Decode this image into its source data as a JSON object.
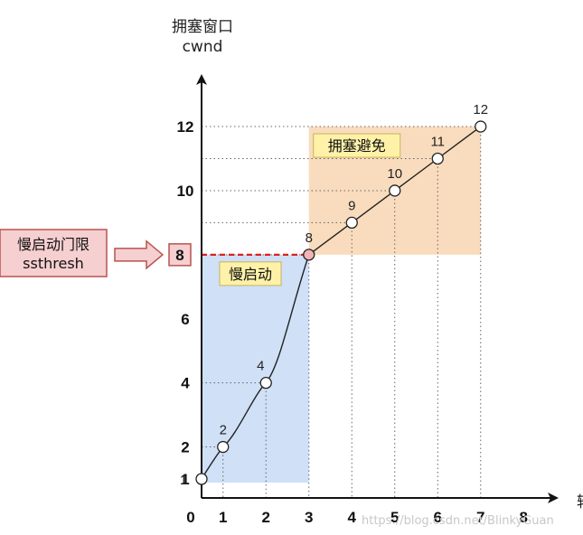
{
  "chart_data": {
    "type": "line",
    "ylabel_line1": "拥塞窗口",
    "ylabel_line2": "cwnd",
    "xlabel": "轮",
    "x_ticks": [
      0,
      1,
      2,
      3,
      4,
      5,
      6,
      7,
      8
    ],
    "y_ticks": [
      1,
      2,
      4,
      6,
      8,
      10,
      12
    ],
    "xlim": [
      0,
      8
    ],
    "ylim": [
      1,
      12
    ],
    "series": [
      {
        "points": [
          {
            "x": 0,
            "y": 1,
            "label": "1"
          },
          {
            "x": 0.5,
            "y": 2,
            "label": "2"
          },
          {
            "x": 1.5,
            "y": 4,
            "label": "4"
          },
          {
            "x": 2.5,
            "y": 8,
            "label": "8"
          },
          {
            "x": 3.5,
            "y": 9,
            "label": "9"
          },
          {
            "x": 4.5,
            "y": 10,
            "label": "10"
          },
          {
            "x": 5.5,
            "y": 11,
            "label": "11"
          },
          {
            "x": 6.5,
            "y": 12,
            "label": "12"
          }
        ]
      }
    ],
    "ssthresh_value": 8,
    "ssthresh_tick_label": "8",
    "regions": {
      "slow_start": {
        "label": "慢启动",
        "x_range": [
          0,
          2.5
        ],
        "y_range": [
          1,
          8
        ],
        "color": "#cfe0f7"
      },
      "congestion_avoidance": {
        "label": "拥塞避免",
        "x_range": [
          2.5,
          6.5
        ],
        "y_range": [
          8,
          12
        ],
        "color": "#f9dcbd"
      }
    },
    "annotation": {
      "line1": "慢启动门限",
      "line2": "ssthresh",
      "box_color": "#f6cfd0",
      "border_color": "#b85450"
    },
    "colors": {
      "curve": "#222222",
      "ssthresh_line": "#e0201f",
      "highlight_point": "#f2b3b4",
      "point_fill": "#ffffff",
      "axis": "#111111",
      "gridline": "#666666"
    },
    "watermark": "https://blog.csdn.net/BlinkyGuan"
  }
}
